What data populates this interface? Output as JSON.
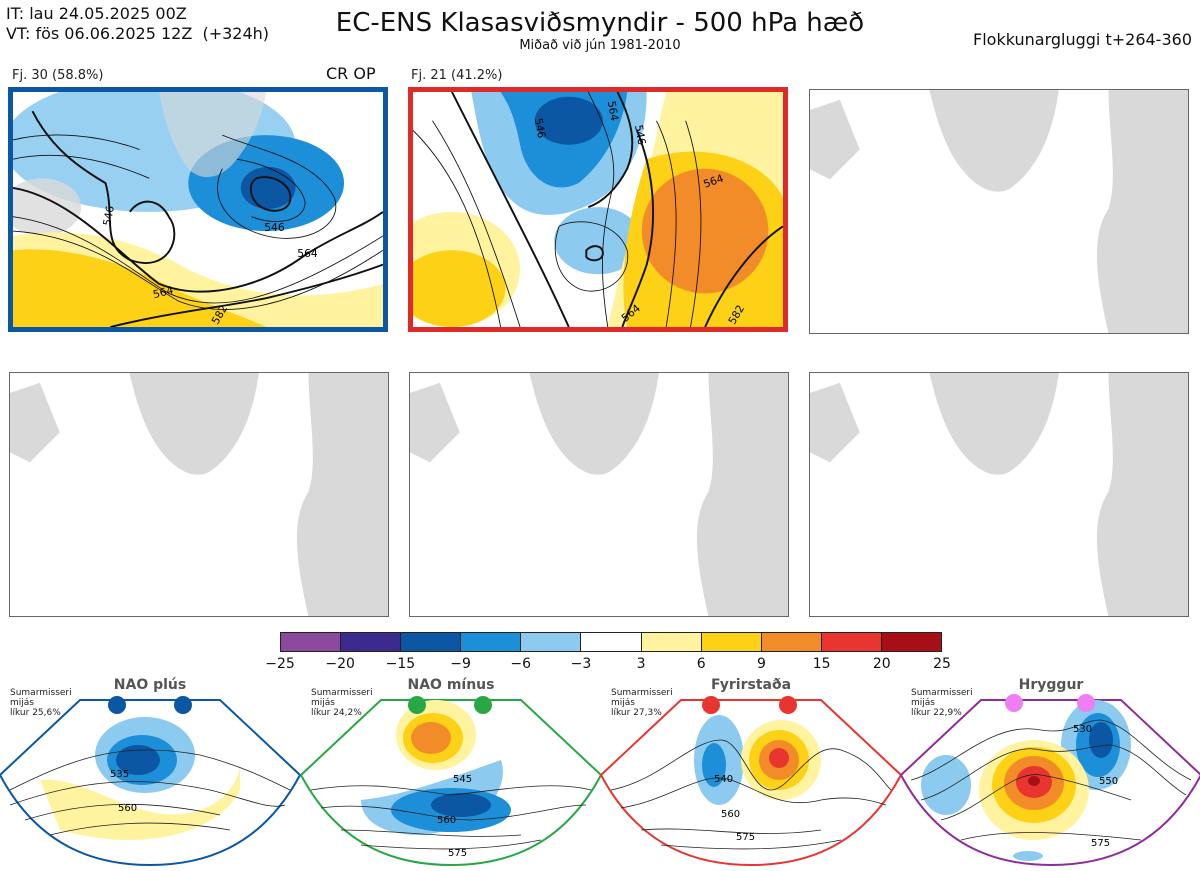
{
  "header": {
    "it_line": "IT: lau 24.05.2025 00Z",
    "vt_line": "VT: fös 06.06.2025 12Z  (+324h)",
    "title": "EC-ENS Klasasviðsmyndir - 500 hPa hæð",
    "subtitle": "Miðað við jún 1981-2010",
    "window": "Flokkunargluggi t+264-360"
  },
  "clusters": [
    {
      "label": "Fj. 30 (58.8%)",
      "tag": "CR OP",
      "members": 30,
      "percent": 58.8,
      "frame_color": "#0b57a4",
      "contour_labels": [
        "546",
        "546",
        "564",
        "564",
        "582"
      ]
    },
    {
      "label": "Fj. 21 (41.2%)",
      "tag": "",
      "members": 21,
      "percent": 41.2,
      "frame_color": "#e02a2a",
      "contour_labels": [
        "546",
        "564",
        "546",
        "564",
        "564",
        "582"
      ]
    }
  ],
  "colorbar": {
    "ticks": [
      "−25",
      "−20",
      "−15",
      "−9",
      "−6",
      "−3",
      "3",
      "6",
      "9",
      "15",
      "20",
      "25"
    ],
    "colors": [
      "#8b4a9e",
      "#3d2a8f",
      "#0b57a4",
      "#1d8fd8",
      "#8ccbef",
      "#ffffff",
      "#fff3a0",
      "#fcd116",
      "#f28c28",
      "#e8352f",
      "#a50f15"
    ]
  },
  "regimes": [
    {
      "name": "NAO plús",
      "season": "Sumarmisseri",
      "note": "mijás",
      "prob_label": "líkur 25,6%",
      "probability": 25.6,
      "color": "#0b57a4",
      "labels": [
        "535",
        "560"
      ]
    },
    {
      "name": "NAO mínus",
      "season": "Sumarmisseri",
      "note": "mijás",
      "prob_label": "líkur 24,2%",
      "probability": 24.2,
      "color": "#27a844",
      "labels": [
        "545",
        "560",
        "575"
      ]
    },
    {
      "name": "Fyrirstaða",
      "season": "Sumarmisseri",
      "note": "mijás",
      "prob_label": "líkur 27,3%",
      "probability": 27.3,
      "color": "#e8352f",
      "labels": [
        "540",
        "560",
        "575"
      ]
    },
    {
      "name": "Hryggur",
      "season": "Sumarmisseri",
      "note": "mijás",
      "prob_label": "líkur 22,9%",
      "probability": 22.9,
      "color": "#8e2c9a",
      "labels": [
        "530",
        "550",
        "575"
      ]
    }
  ],
  "chart_data": [
    {
      "type": "heatmap",
      "title": "Fj. 30 (58.8%)",
      "variable": "500 hPa hæð frávik",
      "contour_levels": [
        546,
        564,
        582
      ]
    },
    {
      "type": "heatmap",
      "title": "Fj. 21 (41.2%)",
      "variable": "500 hPa hæð frávik",
      "contour_levels": [
        546,
        564,
        582
      ]
    }
  ],
  "icons": {
    "regime-marker": "filled-circle-icon",
    "landmask": "map-outline"
  }
}
